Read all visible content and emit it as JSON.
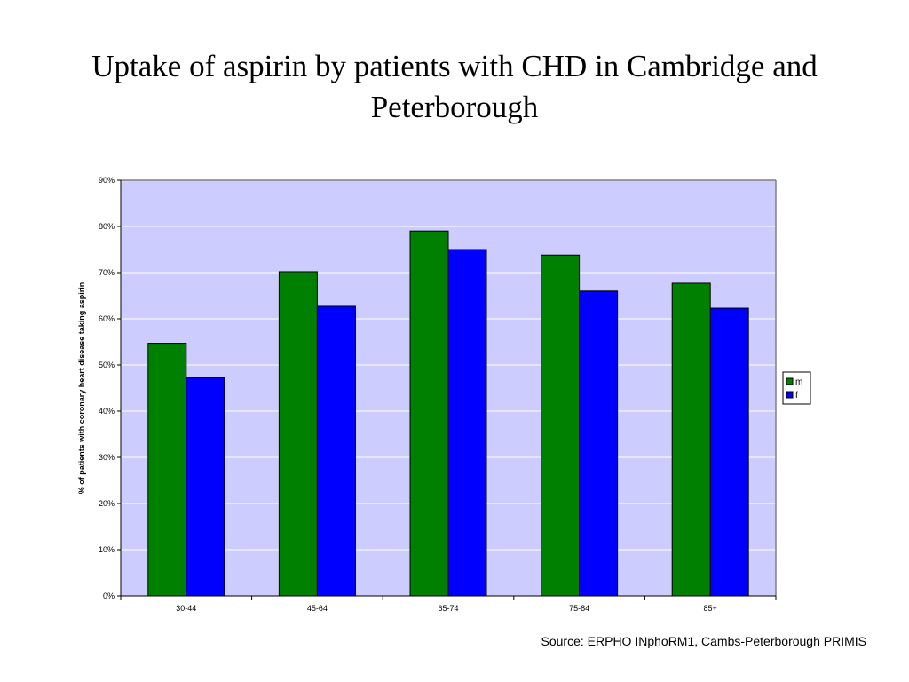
{
  "slide": {
    "title": "Uptake of aspirin by patients with CHD in Cambridge and Peterborough",
    "source": "Source: ERPHO INphoRM1, Cambs-Peterborough PRIMIS"
  },
  "colors": {
    "plot_bg": "#CCCCFF",
    "m": "#008000",
    "f": "#0000FF",
    "gridline": "#FFFFFF",
    "axis": "#808080"
  },
  "chart_data": {
    "type": "bar",
    "title": "",
    "xlabel": "",
    "ylabel": "% of patients with coronary heart disease taking aspirin",
    "categories": [
      "30-44",
      "45-64",
      "65-74",
      "75-84",
      "85+"
    ],
    "series": [
      {
        "name": "m",
        "values": [
          54.7,
          70.2,
          79.0,
          73.8,
          67.7
        ]
      },
      {
        "name": "f",
        "values": [
          47.2,
          62.7,
          75.0,
          66.0,
          62.3
        ]
      }
    ],
    "ylim": [
      0,
      90
    ],
    "yticks": [
      "0%",
      "10%",
      "20%",
      "30%",
      "40%",
      "50%",
      "60%",
      "70%",
      "80%",
      "90%"
    ],
    "grid": true,
    "legend": "right"
  }
}
